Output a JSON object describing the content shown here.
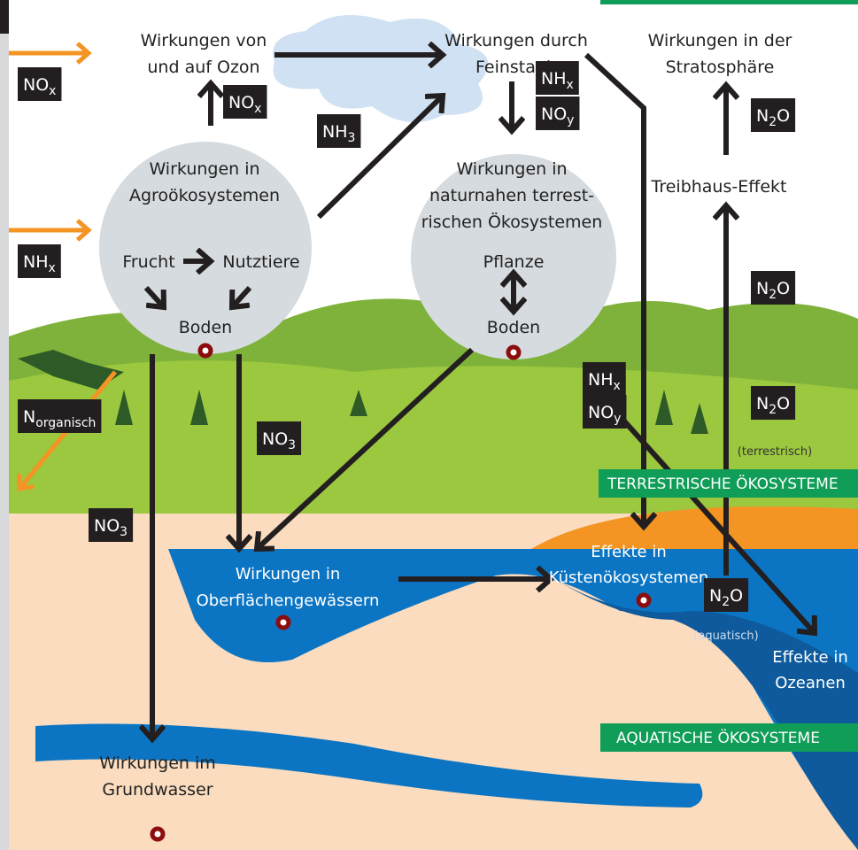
{
  "flows": {
    "ozone": [
      "Wirkungen von",
      "und auf Ozon"
    ],
    "particulates": [
      "Wirkungen durch",
      "Feinstaub"
    ],
    "stratosphere": [
      "Wirkungen in der",
      "Stratosphäre"
    ],
    "agro": [
      "Wirkungen in",
      "Agroökosystemen"
    ],
    "crop": "Frucht",
    "livestock": "Nutztiere",
    "agro_soil": "Boden",
    "natural": [
      "Wirkungen in",
      "naturnahen terrest-",
      "rischen Ökosystemen"
    ],
    "plant": "Pflanze",
    "natural_soil": "Boden",
    "greenhouse": "Treibhaus-Effekt",
    "surface_water": [
      "Wirkungen in",
      "Oberflächengewässern"
    ],
    "coast": [
      "Effekte in",
      "Küstenökosystemen"
    ],
    "ocean": [
      "Effekte in",
      "Ozeanen"
    ],
    "groundwater": [
      "Wirkungen im",
      "Grundwasser"
    ]
  },
  "labels": [
    {
      "base": "NO",
      "sub": "x"
    },
    {
      "base": "NO",
      "sub": "x"
    },
    {
      "base": "NH",
      "sub": "3"
    },
    {
      "base": "NH",
      "sub": "x"
    },
    {
      "base": "NO",
      "sub": "y"
    },
    {
      "base": "N",
      "sub": "2",
      "suffix": "O"
    },
    {
      "base": "NH",
      "sub": "x"
    },
    {
      "base": "N",
      "sub": "2",
      "suffix": "O"
    },
    {
      "base": "N",
      "sub": "organisch"
    },
    {
      "base": "NO",
      "sub": "3"
    },
    {
      "base": "NH",
      "sub": "x"
    },
    {
      "base": "NO",
      "sub": "y"
    },
    {
      "base": "N",
      "sub": "2",
      "suffix": "O"
    },
    {
      "base": "NO",
      "sub": "3"
    },
    {
      "base": "N",
      "sub": "2",
      "suffix": "O"
    }
  ],
  "annotations": {
    "terrestrial": "(terrestrisch)",
    "aquatic": "(aquatisch)"
  },
  "zones": {
    "terrestrial": "TERRESTRISCHE ÖKOSYSTEME",
    "aquatic": "AQUATISCHE ÖKOSYSTEME"
  }
}
